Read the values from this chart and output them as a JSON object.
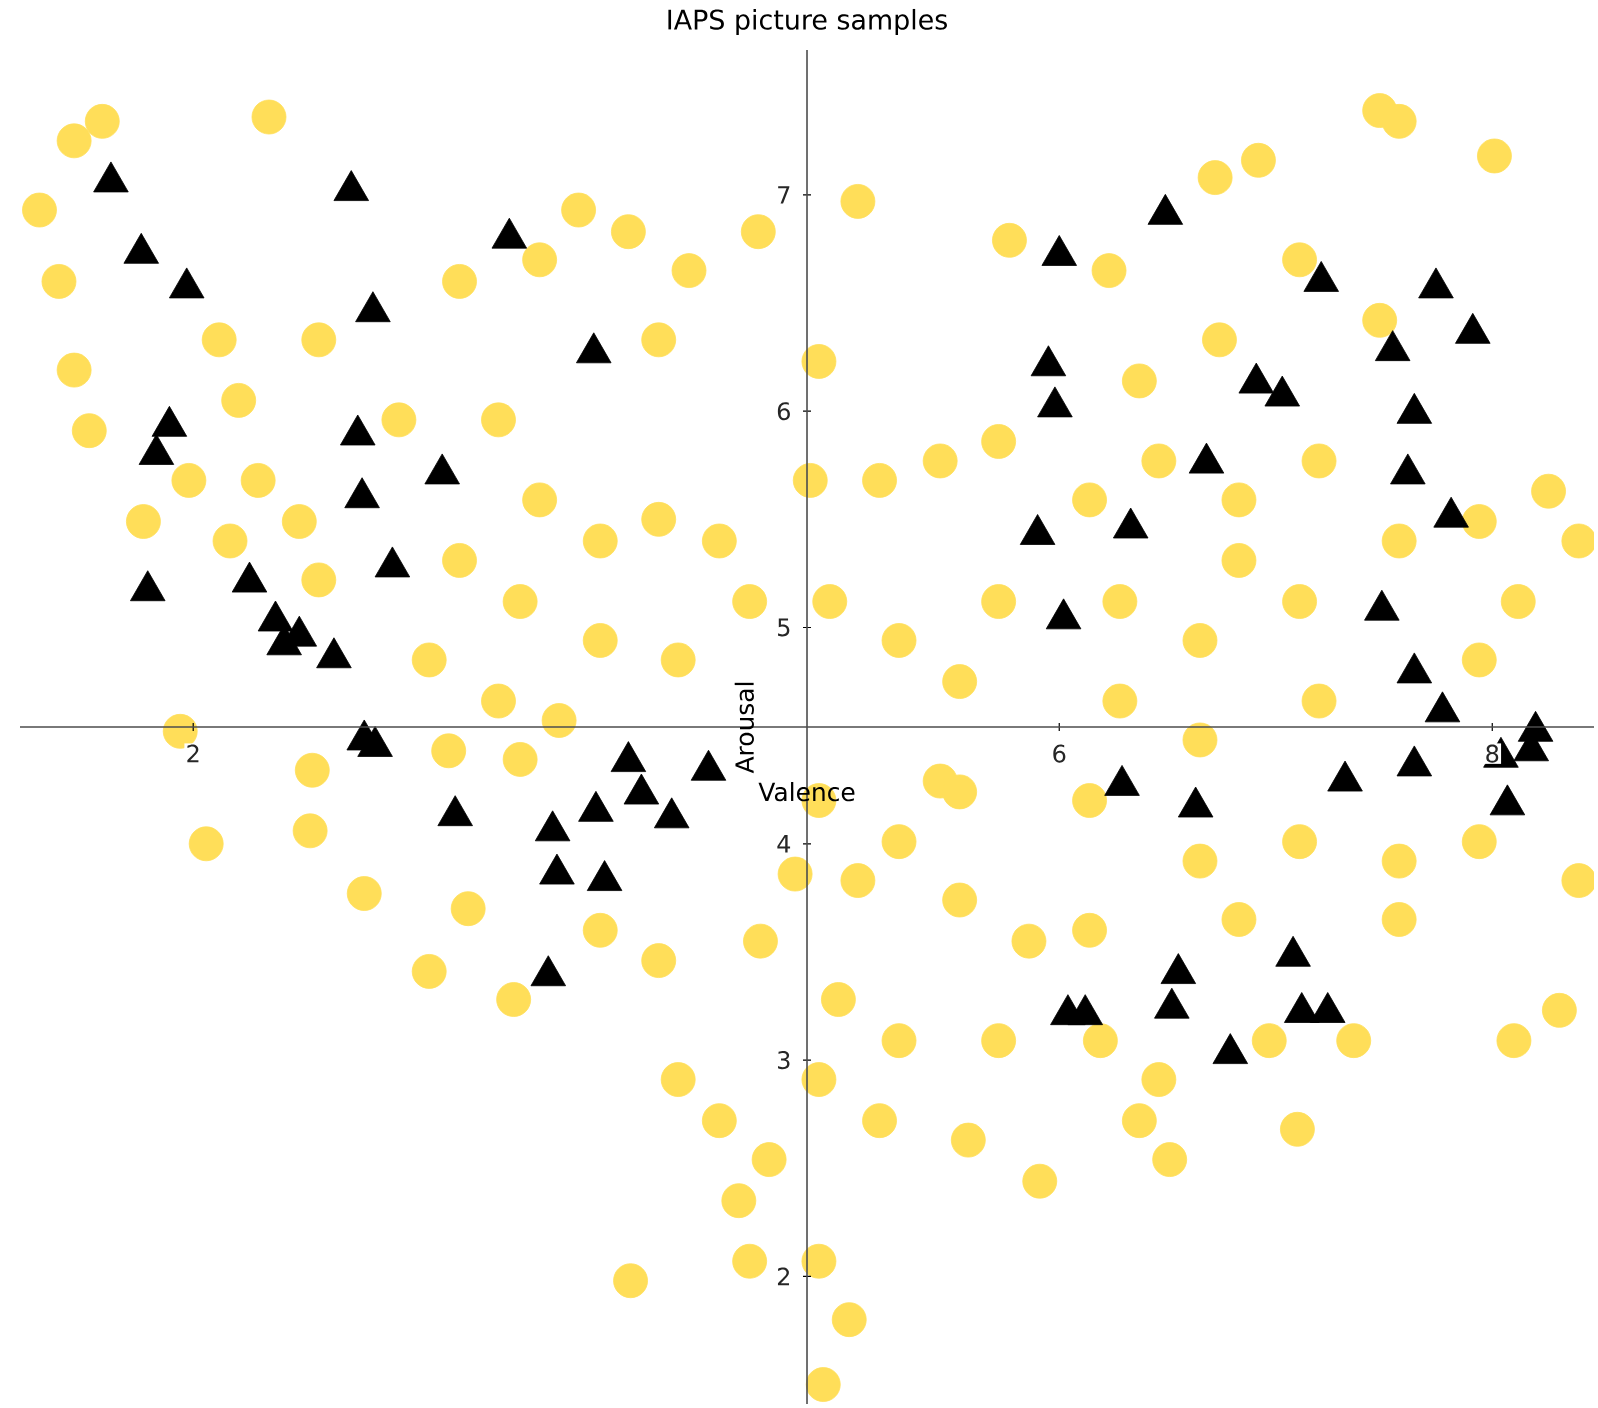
{
  "chart_data": {
    "type": "scatter",
    "title": "IAPS picture samples",
    "xlabel": "Valence",
    "ylabel": "Arousal",
    "xlim": [
      1.2,
      8.47
    ],
    "ylim": [
      1.41,
      7.67
    ],
    "xticks": [
      2,
      6,
      8
    ],
    "yticks": [
      2,
      3,
      4,
      5,
      6,
      7
    ],
    "grid": false,
    "series": [
      {
        "color": "#ffde59",
        "marker": "circle",
        "x": [
          1.29,
          1.45,
          1.58,
          2.35,
          1.38,
          1.45,
          1.52,
          1.77,
          1.94,
          2.06,
          2.54,
          2.55,
          3.09,
          3.48,
          2.79,
          3.27,
          2.21,
          2.58,
          2.95,
          3.23,
          3.6,
          3.78,
          4.01,
          4.29,
          4.61,
          4.15,
          3.41,
          3.6,
          3.88,
          4.15,
          4.43,
          4.57,
          4.24,
          3.88,
          3.51,
          3.23,
          3.09,
          3.41,
          3.69,
          2.49,
          2.3,
          2.58,
          2.12,
          1.98,
          2.17,
          3.51,
          3.18,
          4.89,
          5.07,
          4.85,
          5.17,
          5.45,
          5.72,
          4.94,
          5.26,
          5.54,
          5.72,
          5.45,
          5.26,
          5.54,
          5.07,
          4.89,
          4.78,
          4.62,
          4.98,
          5.26,
          4.89,
          5.17,
          4.66,
          4.43,
          4.24,
          4.52,
          4.89,
          5.03,
          4.91,
          4.57,
          4.02,
          4.15,
          3.88,
          5.58,
          5.72,
          6.19,
          5.91,
          5.54,
          5.77,
          6.23,
          6.72,
          6.92,
          7.48,
          7.57,
          8.01,
          7.48,
          7.11,
          6.74,
          6.37,
          6.14,
          6.46,
          6.83,
          7.2,
          7.57,
          7.94,
          8.26,
          8.4,
          8.12,
          7.94,
          6.28,
          6.65,
          7.11,
          6.83,
          7.2,
          6.65,
          6.28,
          6.14,
          6.65,
          7.11,
          7.57,
          7.94,
          8.4,
          8.31,
          8.1,
          7.57,
          6.83,
          6.46,
          6.51,
          6.37,
          6.97,
          7.1,
          7.36,
          6.14,
          5.86
        ],
        "values": [
          6.93,
          7.25,
          7.34,
          7.36,
          6.6,
          6.19,
          5.91,
          5.49,
          4.52,
          4.0,
          4.06,
          4.34,
          3.41,
          3.28,
          3.77,
          3.7,
          6.05,
          6.33,
          5.96,
          6.6,
          6.7,
          6.93,
          6.83,
          6.65,
          6.83,
          6.33,
          5.96,
          5.59,
          5.4,
          5.5,
          5.4,
          5.12,
          4.85,
          4.94,
          5.12,
          5.31,
          4.85,
          4.66,
          4.57,
          5.49,
          5.68,
          5.22,
          6.33,
          5.68,
          5.4,
          4.39,
          4.43,
          6.23,
          6.97,
          5.68,
          5.68,
          5.77,
          5.86,
          5.12,
          4.94,
          4.75,
          5.12,
          4.29,
          4.01,
          3.74,
          3.83,
          4.2,
          3.86,
          3.55,
          3.28,
          3.09,
          2.91,
          2.72,
          2.54,
          2.72,
          2.91,
          2.35,
          2.07,
          1.8,
          1.5,
          2.07,
          1.98,
          3.46,
          3.6,
          2.63,
          3.09,
          3.09,
          2.44,
          4.24,
          6.79,
          6.65,
          7.08,
          7.16,
          7.39,
          7.34,
          7.18,
          6.42,
          6.7,
          6.33,
          6.14,
          5.59,
          5.77,
          5.59,
          5.77,
          5.4,
          5.49,
          5.63,
          5.4,
          5.12,
          4.85,
          5.12,
          4.94,
          5.12,
          5.31,
          4.66,
          4.48,
          4.66,
          4.2,
          3.92,
          4.01,
          3.92,
          4.01,
          3.83,
          3.23,
          3.09,
          3.65,
          3.65,
          2.91,
          2.54,
          2.72,
          3.09,
          2.68,
          3.09,
          3.6,
          3.55
        ]
      },
      {
        "color": "#000000",
        "marker": "triangle",
        "x": [
          1.62,
          2.73,
          3.46,
          1.76,
          1.97,
          2.83,
          1.89,
          1.83,
          2.76,
          2.78,
          3.15,
          2.92,
          1.79,
          2.26,
          2.38,
          2.42,
          2.49,
          2.65,
          2.79,
          2.84,
          3.21,
          3.66,
          3.68,
          3.64,
          4.01,
          4.38,
          3.86,
          4.07,
          4.21,
          3.9,
          3.85,
          6.0,
          5.95,
          5.98,
          5.9,
          6.02,
          6.49,
          7.21,
          7.74,
          7.91,
          7.54,
          6.91,
          7.03,
          7.64,
          6.68,
          7.61,
          7.81,
          6.33,
          7.49,
          7.64,
          7.77,
          8.2,
          6.29,
          6.63,
          7.32,
          7.64,
          8.04,
          8.18,
          8.07,
          7.08,
          6.55,
          6.52,
          6.04,
          6.12,
          7.12,
          7.24,
          6.79
        ],
        "values": [
          7.06,
          7.02,
          6.8,
          6.73,
          6.57,
          6.46,
          5.93,
          5.8,
          5.89,
          5.6,
          5.71,
          5.28,
          5.17,
          5.21,
          5.03,
          4.92,
          4.96,
          4.86,
          4.48,
          4.45,
          4.13,
          4.06,
          3.86,
          3.39,
          4.38,
          4.34,
          4.15,
          4.23,
          4.12,
          3.83,
          6.27,
          6.72,
          6.21,
          6.02,
          5.43,
          5.04,
          6.91,
          6.6,
          6.57,
          6.36,
          6.28,
          6.13,
          6.07,
          5.99,
          5.76,
          5.71,
          5.51,
          5.46,
          5.08,
          4.79,
          4.61,
          4.52,
          4.27,
          4.17,
          4.29,
          4.36,
          4.4,
          4.43,
          4.18,
          3.48,
          3.4,
          3.24,
          3.21,
          3.21,
          3.22,
          3.22,
          3.03
        ]
      }
    ]
  }
}
